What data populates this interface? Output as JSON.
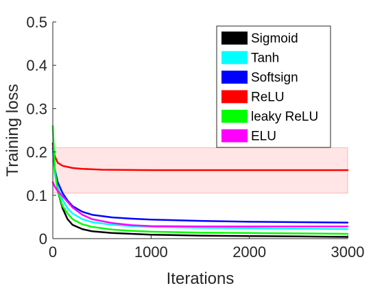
{
  "chart_data": {
    "type": "line",
    "title": "",
    "xlabel": "Iterations",
    "ylabel": "Training loss",
    "xlim": [
      0,
      3000
    ],
    "ylim": [
      0,
      0.5
    ],
    "xticks": [
      0,
      1000,
      2000,
      3000
    ],
    "yticks": [
      0,
      0.1,
      0.2,
      0.3,
      0.4,
      0.5
    ],
    "xtick_labels": [
      "0",
      "1000",
      "2000",
      "3000"
    ],
    "ytick_labels": [
      "0",
      "0.1",
      "0.2",
      "0.3",
      "0.4",
      "0.5"
    ],
    "grid": false,
    "legend_position": "top-right",
    "series": [
      {
        "name": "Sigmoid",
        "color": "#000000",
        "x": [
          0,
          20,
          50,
          100,
          150,
          200,
          300,
          400,
          600,
          800,
          1000,
          1500,
          2000,
          2500,
          3000
        ],
        "y": [
          0.22,
          0.16,
          0.11,
          0.07,
          0.045,
          0.032,
          0.022,
          0.017,
          0.013,
          0.011,
          0.009,
          0.007,
          0.006,
          0.005,
          0.004
        ]
      },
      {
        "name": "Tanh",
        "color": "#00ffff",
        "x": [
          0,
          20,
          50,
          100,
          150,
          200,
          300,
          400,
          600,
          800,
          1000,
          1500,
          2000,
          2500,
          3000
        ],
        "y": [
          0.2,
          0.15,
          0.12,
          0.09,
          0.07,
          0.058,
          0.045,
          0.038,
          0.032,
          0.029,
          0.027,
          0.025,
          0.024,
          0.023,
          0.022
        ]
      },
      {
        "name": "Softsign",
        "color": "#0000ff",
        "x": [
          0,
          20,
          50,
          100,
          150,
          200,
          300,
          400,
          600,
          800,
          1000,
          1500,
          2000,
          2500,
          3000
        ],
        "y": [
          0.21,
          0.16,
          0.13,
          0.105,
          0.088,
          0.075,
          0.062,
          0.055,
          0.049,
          0.046,
          0.044,
          0.041,
          0.039,
          0.038,
          0.037
        ]
      },
      {
        "name": "ReLU",
        "color": "#ff0000",
        "band": [
          0.105,
          0.21
        ],
        "x": [
          0,
          20,
          50,
          100,
          200,
          300,
          500,
          1000,
          1500,
          2000,
          2500,
          3000
        ],
        "y": [
          0.215,
          0.19,
          0.175,
          0.168,
          0.163,
          0.161,
          0.159,
          0.158,
          0.158,
          0.158,
          0.158,
          0.158
        ]
      },
      {
        "name": "leaky ReLU",
        "color": "#00ff00",
        "x": [
          0,
          20,
          50,
          100,
          150,
          200,
          300,
          400,
          600,
          800,
          1000,
          1500,
          2000,
          2500,
          3000
        ],
        "y": [
          0.26,
          0.16,
          0.11,
          0.075,
          0.058,
          0.045,
          0.033,
          0.027,
          0.021,
          0.018,
          0.016,
          0.014,
          0.013,
          0.012,
          0.011
        ]
      },
      {
        "name": "ELU",
        "color": "#ff00ff",
        "x": [
          0,
          20,
          50,
          100,
          150,
          200,
          300,
          400,
          600,
          800,
          1000,
          1500,
          2000,
          2500,
          3000
        ],
        "y": [
          0.13,
          0.12,
          0.11,
          0.098,
          0.085,
          0.072,
          0.055,
          0.045,
          0.036,
          0.031,
          0.029,
          0.028,
          0.028,
          0.028,
          0.028
        ]
      }
    ]
  }
}
